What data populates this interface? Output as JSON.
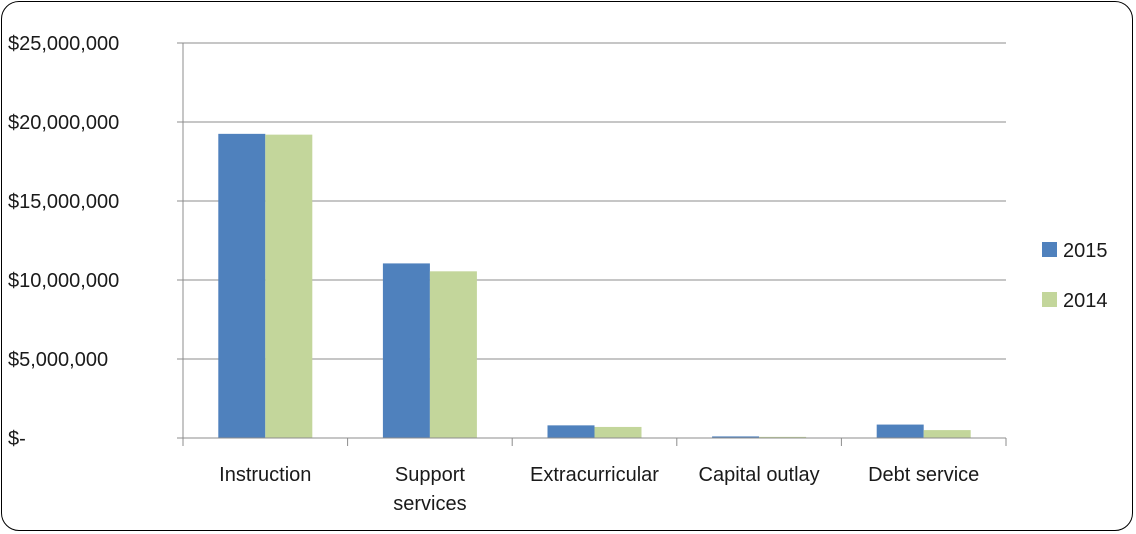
{
  "chart_data": {
    "type": "bar",
    "categories": [
      [
        "Instruction"
      ],
      [
        "Support",
        "services"
      ],
      [
        "Extracurricular"
      ],
      [
        "Capital outlay"
      ],
      [
        "Debt service"
      ]
    ],
    "series": [
      {
        "name": "2015",
        "color": "#4f81bd",
        "values": [
          19250000,
          11050000,
          800000,
          100000,
          850000
        ]
      },
      {
        "name": "2014",
        "color": "#c3d69b",
        "values": [
          19200000,
          10550000,
          700000,
          70000,
          500000
        ]
      }
    ],
    "yticks": [
      0,
      5000000,
      10000000,
      15000000,
      20000000,
      25000000
    ],
    "ytick_labels": [
      "$-",
      "$5,000,000",
      "$10,000,000",
      "$15,000,000",
      "$20,000,000",
      "$25,000,000"
    ],
    "ylim": [
      0,
      25000000
    ],
    "grid": true,
    "legend": "right"
  }
}
